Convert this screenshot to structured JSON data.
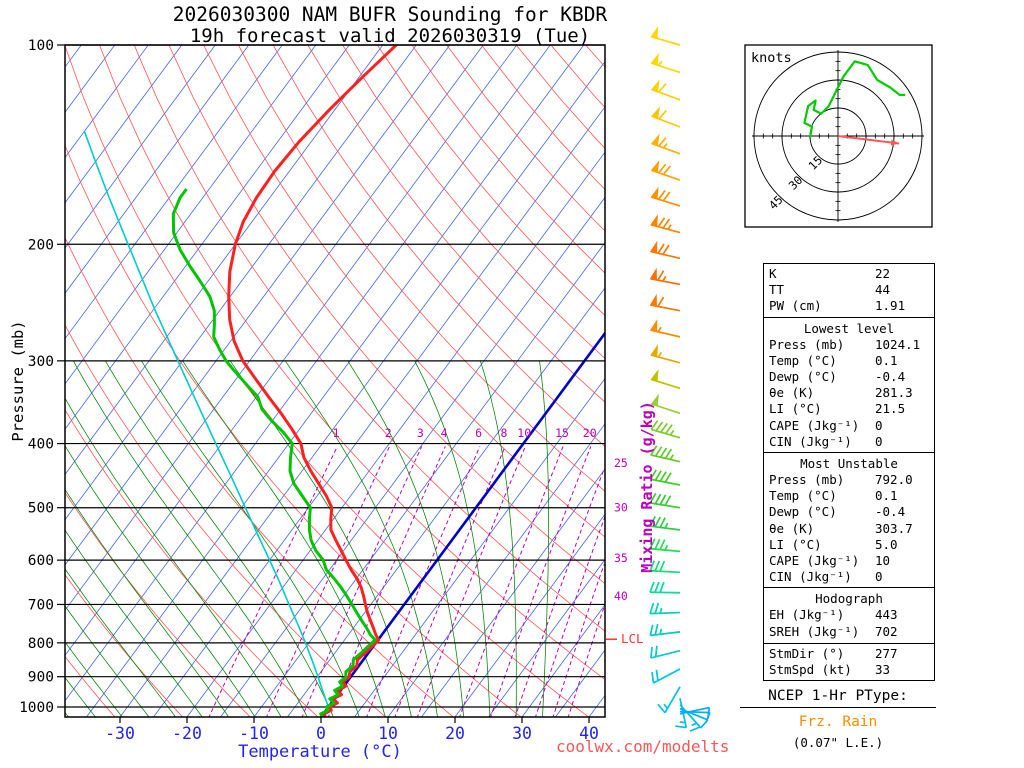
{
  "title": {
    "line1": "2026030300 NAM BUFR Sounding for KBDR",
    "line2": "19h forecast valid 2026030319 (Tue)"
  },
  "axes": {
    "pressure_label": "Pressure (mb)",
    "temperature_label": "Temperature (°C)",
    "mixing_ratio_label": "Mixing Ratio (g/kg)",
    "pressure_ticks": [
      100,
      200,
      300,
      400,
      500,
      600,
      700,
      800,
      900,
      1000
    ],
    "temp_ticks": [
      -30,
      -20,
      -10,
      0,
      10,
      20,
      30,
      40
    ],
    "lcl_label": "LCL"
  },
  "chart_data": {
    "type": "skew-t-log-p-sounding",
    "pressure_range_mb": [
      100,
      1037
    ],
    "temperature_axis_c": [
      -30,
      40
    ],
    "series": [
      {
        "name": "temperature",
        "color": "#ff2020",
        "points_p_t": [
          [
            1034,
            0.6
          ],
          [
            1024,
            0.1
          ],
          [
            1012,
            0.8
          ],
          [
            1000,
            0.2
          ],
          [
            986,
            0.9
          ],
          [
            972,
            -0.2
          ],
          [
            958,
            0.6
          ],
          [
            944,
            -0.4
          ],
          [
            930,
            0.3
          ],
          [
            916,
            -0.6
          ],
          [
            902,
            -0.2
          ],
          [
            884,
            -0.7
          ],
          [
            866,
            -0.3
          ],
          [
            848,
            -0.9
          ],
          [
            830,
            -0.5
          ],
          [
            812,
            -0.2
          ],
          [
            800,
            0.0
          ],
          [
            792,
            0.1
          ],
          [
            778,
            -0.9
          ],
          [
            760,
            -2.0
          ],
          [
            740,
            -3.3
          ],
          [
            720,
            -4.6
          ],
          [
            700,
            -5.8
          ],
          [
            680,
            -7.0
          ],
          [
            660,
            -8.3
          ],
          [
            640,
            -9.9
          ],
          [
            620,
            -11.8
          ],
          [
            600,
            -13.6
          ],
          [
            580,
            -15.4
          ],
          [
            560,
            -17.3
          ],
          [
            540,
            -19.2
          ],
          [
            520,
            -20.4
          ],
          [
            500,
            -21.5
          ],
          [
            480,
            -23.6
          ],
          [
            460,
            -26.1
          ],
          [
            440,
            -28.7
          ],
          [
            420,
            -31.2
          ],
          [
            400,
            -33.2
          ],
          [
            380,
            -36.2
          ],
          [
            360,
            -39.5
          ],
          [
            340,
            -43.2
          ],
          [
            320,
            -47.0
          ],
          [
            300,
            -51.0
          ],
          [
            280,
            -54.5
          ],
          [
            260,
            -57.5
          ],
          [
            240,
            -60.2
          ],
          [
            220,
            -62.8
          ],
          [
            200,
            -65.0
          ],
          [
            185,
            -66.3
          ],
          [
            170,
            -67.0
          ],
          [
            155,
            -67.2
          ],
          [
            140,
            -66.8
          ],
          [
            125,
            -65.8
          ],
          [
            112,
            -64.5
          ],
          [
            100,
            -63.0
          ]
        ]
      },
      {
        "name": "dewpoint",
        "color": "#00c400",
        "points_p_t": [
          [
            1034,
            0.1
          ],
          [
            1024,
            -0.4
          ],
          [
            1012,
            0.3
          ],
          [
            1000,
            -0.3
          ],
          [
            986,
            0.4
          ],
          [
            972,
            -0.7
          ],
          [
            958,
            0.1
          ],
          [
            944,
            -0.9
          ],
          [
            930,
            -0.2
          ],
          [
            916,
            -1.1
          ],
          [
            902,
            -0.7
          ],
          [
            884,
            -1.3
          ],
          [
            866,
            -0.9
          ],
          [
            848,
            -1.5
          ],
          [
            830,
            -1.1
          ],
          [
            812,
            -0.8
          ],
          [
            800,
            -0.6
          ],
          [
            792,
            -0.4
          ],
          [
            778,
            -1.7
          ],
          [
            760,
            -3.0
          ],
          [
            740,
            -4.6
          ],
          [
            720,
            -6.2
          ],
          [
            700,
            -7.8
          ],
          [
            680,
            -9.5
          ],
          [
            660,
            -11.3
          ],
          [
            640,
            -13.3
          ],
          [
            620,
            -15.5
          ],
          [
            600,
            -17.0
          ],
          [
            580,
            -19.2
          ],
          [
            560,
            -21.0
          ],
          [
            540,
            -22.4
          ],
          [
            520,
            -23.6
          ],
          [
            500,
            -24.7
          ],
          [
            480,
            -27.2
          ],
          [
            460,
            -29.8
          ],
          [
            440,
            -31.8
          ],
          [
            420,
            -33.2
          ],
          [
            400,
            -34.5
          ],
          [
            385,
            -37.0
          ],
          [
            370,
            -40.0
          ],
          [
            355,
            -42.8
          ],
          [
            340,
            -44.8
          ],
          [
            325,
            -48.0
          ],
          [
            310,
            -51.3
          ],
          [
            300,
            -53.5
          ],
          [
            288,
            -55.8
          ],
          [
            276,
            -58.0
          ],
          [
            264,
            -59.3
          ],
          [
            252,
            -60.8
          ],
          [
            240,
            -63.0
          ],
          [
            228,
            -66.0
          ],
          [
            216,
            -69.3
          ],
          [
            204,
            -72.6
          ],
          [
            192,
            -75.5
          ],
          [
            180,
            -77.6
          ],
          [
            170,
            -78.4
          ],
          [
            165,
            -78.4
          ]
        ]
      },
      {
        "name": "surface-parcel",
        "color": "#00cccc",
        "points_p_t": [
          [
            1034,
            0.4
          ],
          [
            1000,
            0.0
          ],
          [
            950,
            -2.4
          ],
          [
            900,
            -4.9
          ],
          [
            850,
            -7.6
          ],
          [
            800,
            -10.5
          ],
          [
            750,
            -13.7
          ],
          [
            700,
            -17.2
          ],
          [
            650,
            -20.9
          ],
          [
            600,
            -25.0
          ],
          [
            550,
            -29.5
          ],
          [
            500,
            -34.4
          ],
          [
            450,
            -39.8
          ],
          [
            400,
            -45.9
          ],
          [
            350,
            -52.8
          ],
          [
            300,
            -60.7
          ],
          [
            250,
            -70.0
          ],
          [
            200,
            -81.0
          ],
          [
            170,
            -89.0
          ],
          [
            150,
            -95.0
          ],
          [
            135,
            -100.0
          ]
        ]
      }
    ],
    "background": {
      "isotherm_step_c": 5,
      "isotherm_color": "#4466dd",
      "zero_isotherm_color": "#0000cc",
      "dry_adiabat_theta_k_range": [
        240,
        460,
        10
      ],
      "dry_adiabat_color": "#ff5555",
      "moist_adiabat_thetaw_c_range": [
        -52,
        32,
        4
      ],
      "moist_adiabat_color": "#008000",
      "mixing_ratio_g_kg": [
        1,
        2,
        3,
        4,
        6,
        8,
        10,
        15,
        20,
        25,
        30,
        35,
        40
      ],
      "mixing_ratio_color": "#bb00bb",
      "lcl_pressure_mb": 790
    },
    "wind_barbs": [
      {
        "p": 100,
        "dir": 286,
        "spd": 50,
        "color": "#ffd700"
      },
      {
        "p": 110,
        "dir": 288,
        "spd": 55,
        "color": "#ffd700"
      },
      {
        "p": 121,
        "dir": 290,
        "spd": 60,
        "color": "#ffd000"
      },
      {
        "p": 133,
        "dir": 291,
        "spd": 60,
        "color": "#ffc400"
      },
      {
        "p": 146,
        "dir": 290,
        "spd": 65,
        "color": "#ffb000"
      },
      {
        "p": 160,
        "dir": 289,
        "spd": 70,
        "color": "#ffa000"
      },
      {
        "p": 175,
        "dir": 287,
        "spd": 70,
        "color": "#ff9000"
      },
      {
        "p": 192,
        "dir": 285,
        "spd": 75,
        "color": "#ff8400"
      },
      {
        "p": 210,
        "dir": 283,
        "spd": 70,
        "color": "#ff7800"
      },
      {
        "p": 230,
        "dir": 281,
        "spd": 65,
        "color": "#ff7000"
      },
      {
        "p": 252,
        "dir": 281,
        "spd": 60,
        "color": "#ff7800"
      },
      {
        "p": 276,
        "dir": 283,
        "spd": 55,
        "color": "#ff8c00"
      },
      {
        "p": 302,
        "dir": 285,
        "spd": 55,
        "color": "#e8a800"
      },
      {
        "p": 330,
        "dir": 287,
        "spd": 50,
        "color": "#c0c000"
      },
      {
        "p": 360,
        "dir": 288,
        "spd": 50,
        "color": "#9acd32"
      },
      {
        "p": 392,
        "dir": 286,
        "spd": 45,
        "color": "#7ccc28"
      },
      {
        "p": 426,
        "dir": 283,
        "spd": 45,
        "color": "#5ecc22"
      },
      {
        "p": 462,
        "dir": 281,
        "spd": 40,
        "color": "#44cc22"
      },
      {
        "p": 500,
        "dir": 279,
        "spd": 40,
        "color": "#33cc33"
      },
      {
        "p": 540,
        "dir": 277,
        "spd": 35,
        "color": "#2ecc44"
      },
      {
        "p": 582,
        "dir": 275,
        "spd": 35,
        "color": "#22dd55"
      },
      {
        "p": 626,
        "dir": 273,
        "spd": 30,
        "color": "#11dd77"
      },
      {
        "p": 672,
        "dir": 271,
        "spd": 30,
        "color": "#00dd99"
      },
      {
        "p": 720,
        "dir": 268,
        "spd": 28,
        "color": "#00d4b0"
      },
      {
        "p": 770,
        "dir": 263,
        "spd": 25,
        "color": "#00ccc4"
      },
      {
        "p": 822,
        "dir": 256,
        "spd": 22,
        "color": "#00c8d4"
      },
      {
        "p": 876,
        "dir": 242,
        "spd": 20,
        "color": "#00c4e0"
      },
      {
        "p": 932,
        "dir": 210,
        "spd": 18,
        "color": "#00c0e8"
      },
      {
        "p": 970,
        "dir": 168,
        "spd": 15,
        "color": "#00bcee"
      },
      {
        "p": 992,
        "dir": 138,
        "spd": 15,
        "color": "#00b8f0"
      },
      {
        "p": 1006,
        "dir": 112,
        "spd": 12,
        "color": "#00b4f2"
      },
      {
        "p": 1016,
        "dir": 92,
        "spd": 10,
        "color": "#00b0f4"
      },
      {
        "p": 1024,
        "dir": 78,
        "spd": 10,
        "color": "#00acf6"
      }
    ]
  },
  "hodograph": {
    "unit_label": "knots",
    "ring_interval_kt": 15,
    "rings_kt": [
      15,
      30,
      45
    ],
    "trace_uv_kt": [
      [
        -15,
        -1
      ],
      [
        -14,
        5
      ],
      [
        -18,
        7
      ],
      [
        -16,
        16
      ],
      [
        -12,
        19
      ],
      [
        -13,
        14
      ],
      [
        -9,
        12
      ],
      [
        -5,
        16
      ],
      [
        -1,
        24
      ],
      [
        3,
        32
      ],
      [
        9,
        40
      ],
      [
        16,
        38
      ],
      [
        21,
        30
      ],
      [
        28,
        26
      ],
      [
        33,
        22
      ],
      [
        36,
        22
      ]
    ],
    "storm_motion_dir_deg": 277,
    "storm_motion_spd_kt": 33
  },
  "table": {
    "sections": [
      {
        "header": null,
        "rows": [
          [
            "K",
            "22"
          ],
          [
            "TT",
            "44"
          ],
          [
            "PW (cm)",
            "1.91"
          ]
        ]
      },
      {
        "header": "Lowest level",
        "rows": [
          [
            "Press (mb)",
            "1024.1"
          ],
          [
            "Temp (°C)",
            "0.1"
          ],
          [
            "Dewp (°C)",
            "-0.4"
          ],
          [
            "θe (K)",
            "281.3"
          ],
          [
            "LI (°C)",
            "21.5"
          ],
          [
            "CAPE (Jkg⁻¹)",
            "0"
          ],
          [
            "CIN (Jkg⁻¹)",
            "0"
          ]
        ]
      },
      {
        "header": "Most Unstable",
        "rows": [
          [
            "Press (mb)",
            "792.0"
          ],
          [
            "Temp (°C)",
            "0.1"
          ],
          [
            "Dewp (°C)",
            "-0.4"
          ],
          [
            "θe (K)",
            "303.7"
          ],
          [
            "LI (°C)",
            "5.0"
          ],
          [
            "CAPE (Jkg⁻¹)",
            "10"
          ],
          [
            "CIN (Jkg⁻¹)",
            "0"
          ]
        ]
      },
      {
        "header": "Hodograph",
        "rows": [
          [
            "EH (Jkg⁻¹)",
            "443"
          ],
          [
            "SREH (Jkg⁻¹)",
            "702"
          ]
        ],
        "rows2": [
          [
            "StmDir (°)",
            "277"
          ],
          [
            "StmSpd (kt)",
            "33"
          ]
        ]
      }
    ]
  },
  "ptype": {
    "header": "NCEP 1-Hr PType:",
    "value": "Frz. Rain",
    "extra": "(0.07\" L.E.)"
  },
  "watermark": "coolwx.com/modelts",
  "colors": {
    "temperature": "#ff2020",
    "dewpoint": "#00c400",
    "parcel": "#00cccc",
    "axis_blue": "#2222ff",
    "mixing": "#bb00bb",
    "ptype_value": "#ff8c00",
    "watermark": "#ff5555",
    "lcl": "#ff3333"
  }
}
